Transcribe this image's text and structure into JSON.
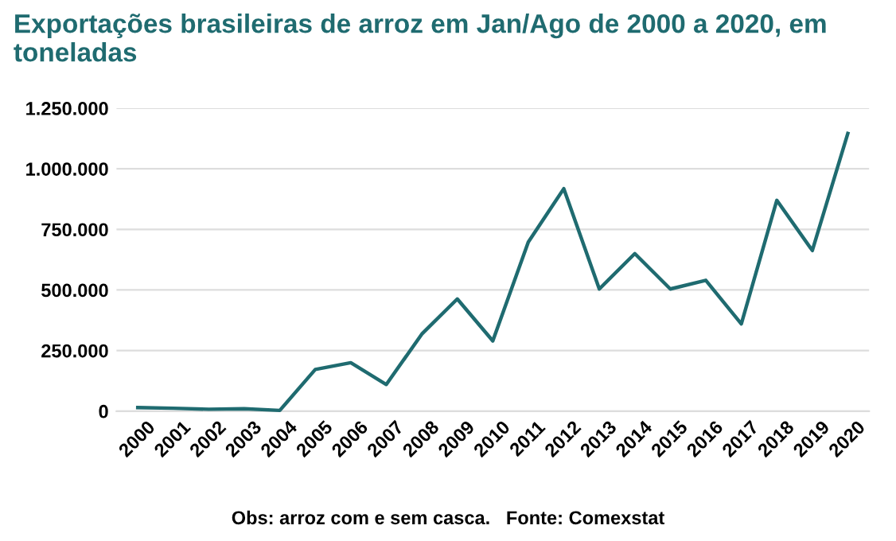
{
  "chart_data": {
    "type": "line",
    "title": "Exportações brasileiras de arroz em Jan/Ago de 2000 a 2020, em toneladas",
    "categories": [
      "2000",
      "2001",
      "2002",
      "2003",
      "2004",
      "2005",
      "2006",
      "2007",
      "2008",
      "2009",
      "2010",
      "2011",
      "2012",
      "2013",
      "2014",
      "2015",
      "2016",
      "2017",
      "2018",
      "2019",
      "2020"
    ],
    "series": [
      {
        "color": "#1f6b70",
        "values": [
          15000,
          12000,
          8000,
          10000,
          3000,
          172000,
          200000,
          110000,
          318000,
          463000,
          290000,
          698000,
          918000,
          504000,
          650000,
          504000,
          540000,
          360000,
          870000,
          663000,
          1146000
        ]
      }
    ],
    "ylim": [
      0,
      1250000
    ],
    "yticks": [
      {
        "value": 0,
        "label": "0"
      },
      {
        "value": 250000,
        "label": "250.000"
      },
      {
        "value": 500000,
        "label": "500.000"
      },
      {
        "value": 750000,
        "label": "750.000"
      },
      {
        "value": 1000000,
        "label": "1.000.000"
      },
      {
        "value": 1250000,
        "label": "1.250.000"
      }
    ],
    "grid": "y",
    "marker": "none",
    "line_style": "solid",
    "annotations": [
      "Obs: arroz com e sem casca.   Fonte: Comexstat"
    ]
  }
}
